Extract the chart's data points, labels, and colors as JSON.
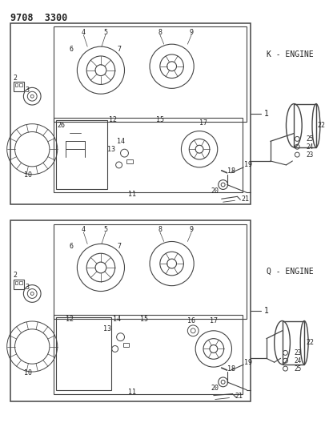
{
  "title": "9708  3300",
  "bg_color": "#ffffff",
  "lc": "#444444",
  "tc": "#222222",
  "label_k": "K - ENGINE",
  "label_q": "Q - ENGINE",
  "fig_width": 4.11,
  "fig_height": 5.33,
  "dpi": 100
}
